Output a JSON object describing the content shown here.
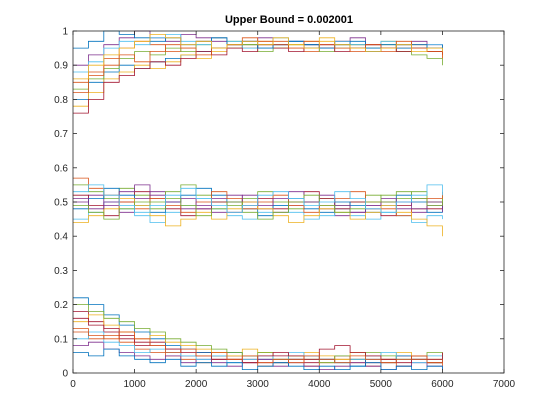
{
  "chart_data": {
    "type": "line",
    "title": "Upper Bound = 0.002001",
    "xlabel": "",
    "ylabel": "",
    "xlim": [
      0,
      7000
    ],
    "ylim": [
      0,
      1
    ],
    "x_ticks": [
      0,
      1000,
      2000,
      3000,
      4000,
      5000,
      6000,
      7000
    ],
    "y_ticks": [
      0,
      0.1,
      0.2,
      0.3,
      0.4,
      0.5,
      0.6,
      0.7,
      0.8,
      0.9,
      1
    ],
    "x_tick_labels": [
      "0",
      "1000",
      "2000",
      "3000",
      "4000",
      "5000",
      "6000",
      "7000"
    ],
    "y_tick_labels": [
      "0",
      "0.1",
      "0.2",
      "0.3",
      "0.4",
      "0.5",
      "0.6",
      "0.7",
      "0.8",
      "0.9",
      "1"
    ],
    "grid": false,
    "legend": "none",
    "x_step": 250,
    "colors": [
      "#0072BD",
      "#D95319",
      "#EDB120",
      "#7E2F8E",
      "#77AC30",
      "#4DBEEE",
      "#A2142F"
    ],
    "series_groups": [
      {
        "band": "upper",
        "series": [
          {
            "values": [
              0.8,
              0.85,
              0.88,
              0.9,
              0.89,
              0.91,
              0.92,
              0.93,
              0.94,
              0.95,
              0.95,
              0.96,
              0.95,
              0.96,
              0.97,
              0.96,
              0.95,
              0.96,
              0.95,
              0.94,
              0.95,
              0.96,
              0.95,
              0.94,
              0.94
            ]
          },
          {
            "values": [
              0.85,
              0.88,
              0.92,
              0.95,
              0.97,
              0.96,
              0.94,
              0.95,
              0.97,
              0.98,
              0.96,
              0.95,
              0.96,
              0.97,
              0.95,
              0.94,
              0.96,
              0.97,
              0.96,
              0.95,
              0.94,
              0.95,
              0.96,
              0.95,
              0.93
            ]
          },
          {
            "values": [
              0.78,
              0.82,
              0.86,
              0.88,
              0.9,
              0.89,
              0.91,
              0.93,
              0.92,
              0.94,
              0.95,
              0.96,
              0.97,
              0.95,
              0.96,
              0.97,
              0.98,
              0.96,
              0.95,
              0.96,
              0.97,
              0.96,
              0.95,
              0.94,
              0.92
            ]
          },
          {
            "values": [
              0.9,
              0.93,
              0.96,
              0.98,
              1.0,
              0.98,
              0.97,
              0.99,
              0.98,
              0.97,
              0.96,
              0.97,
              0.98,
              0.96,
              0.97,
              0.95,
              0.96,
              0.97,
              0.98,
              0.96,
              0.95,
              0.96,
              0.97,
              0.96,
              0.95
            ]
          },
          {
            "values": [
              0.83,
              0.86,
              0.89,
              0.92,
              0.94,
              0.93,
              0.95,
              0.94,
              0.96,
              0.95,
              0.97,
              0.96,
              0.94,
              0.95,
              0.96,
              0.95,
              0.94,
              0.95,
              0.96,
              0.95,
              0.96,
              0.94,
              0.93,
              0.92,
              0.9
            ]
          },
          {
            "values": [
              0.88,
              0.91,
              0.95,
              0.97,
              0.96,
              0.98,
              0.99,
              0.97,
              0.96,
              0.98,
              0.97,
              0.95,
              0.96,
              0.98,
              0.97,
              0.96,
              0.95,
              0.97,
              0.96,
              0.95,
              0.97,
              0.96,
              0.95,
              0.96,
              0.94
            ]
          },
          {
            "values": [
              0.76,
              0.8,
              0.85,
              0.87,
              0.89,
              0.91,
              0.9,
              0.92,
              0.94,
              0.93,
              0.95,
              0.94,
              0.96,
              0.95,
              0.94,
              0.96,
              0.95,
              0.94,
              0.95,
              0.96,
              0.95,
              0.94,
              0.95,
              0.94,
              0.93
            ]
          },
          {
            "values": [
              0.95,
              0.97,
              1.0,
              0.99,
              0.98,
              0.97,
              0.98,
              0.96,
              0.97,
              0.98,
              0.96,
              0.97,
              0.95,
              0.96,
              0.97,
              0.96,
              0.95,
              0.96,
              0.97,
              0.95,
              0.96,
              0.95,
              0.96,
              0.95,
              0.96
            ]
          },
          {
            "values": [
              0.82,
              0.87,
              0.9,
              0.93,
              0.91,
              0.94,
              0.96,
              0.95,
              0.93,
              0.95,
              0.96,
              0.98,
              0.97,
              0.96,
              0.95,
              0.97,
              0.96,
              0.95,
              0.94,
              0.96,
              0.95,
              0.97,
              0.95,
              0.94,
              0.92
            ]
          },
          {
            "values": [
              0.86,
              0.9,
              0.93,
              0.95,
              0.97,
              0.99,
              0.98,
              0.96,
              0.97,
              0.95,
              0.96,
              0.97,
              0.96,
              0.98,
              0.96,
              0.95,
              0.97,
              0.96,
              0.95,
              0.94,
              0.95,
              0.96,
              0.94,
              0.95,
              0.94
            ]
          }
        ]
      },
      {
        "band": "middle",
        "series": [
          {
            "values": [
              0.5,
              0.52,
              0.49,
              0.47,
              0.51,
              0.53,
              0.5,
              0.48,
              0.49,
              0.51,
              0.52,
              0.5,
              0.48,
              0.47,
              0.49,
              0.5,
              0.48,
              0.46,
              0.47,
              0.49,
              0.5,
              0.48,
              0.47,
              0.49,
              0.48
            ]
          },
          {
            "values": [
              0.55,
              0.53,
              0.51,
              0.54,
              0.52,
              0.5,
              0.53,
              0.55,
              0.52,
              0.5,
              0.49,
              0.51,
              0.53,
              0.5,
              0.48,
              0.5,
              0.51,
              0.49,
              0.5,
              0.52,
              0.5,
              0.51,
              0.53,
              0.5,
              0.52
            ]
          },
          {
            "values": [
              0.45,
              0.47,
              0.5,
              0.48,
              0.46,
              0.44,
              0.47,
              0.49,
              0.51,
              0.48,
              0.46,
              0.45,
              0.47,
              0.49,
              0.47,
              0.45,
              0.46,
              0.48,
              0.46,
              0.45,
              0.47,
              0.46,
              0.44,
              0.46,
              0.45
            ]
          },
          {
            "values": [
              0.52,
              0.49,
              0.46,
              0.5,
              0.53,
              0.51,
              0.48,
              0.46,
              0.48,
              0.5,
              0.47,
              0.49,
              0.51,
              0.48,
              0.5,
              0.53,
              0.51,
              0.48,
              0.5,
              0.48,
              0.46,
              0.49,
              0.51,
              0.48,
              0.5
            ]
          },
          {
            "values": [
              0.48,
              0.51,
              0.54,
              0.52,
              0.49,
              0.47,
              0.5,
              0.52,
              0.54,
              0.52,
              0.5,
              0.48,
              0.46,
              0.49,
              0.51,
              0.48,
              0.47,
              0.5,
              0.49,
              0.47,
              0.49,
              0.52,
              0.5,
              0.47,
              0.49
            ]
          },
          {
            "values": [
              0.57,
              0.54,
              0.52,
              0.5,
              0.48,
              0.51,
              0.49,
              0.47,
              0.5,
              0.53,
              0.51,
              0.48,
              0.5,
              0.52,
              0.49,
              0.47,
              0.49,
              0.51,
              0.53,
              0.5,
              0.48,
              0.46,
              0.48,
              0.51,
              0.53
            ]
          },
          {
            "values": [
              0.44,
              0.46,
              0.48,
              0.51,
              0.49,
              0.46,
              0.43,
              0.45,
              0.47,
              0.45,
              0.48,
              0.5,
              0.48,
              0.46,
              0.44,
              0.46,
              0.48,
              0.47,
              0.45,
              0.47,
              0.49,
              0.47,
              0.45,
              0.43,
              0.4
            ]
          },
          {
            "values": [
              0.51,
              0.48,
              0.5,
              0.53,
              0.55,
              0.52,
              0.5,
              0.51,
              0.48,
              0.47,
              0.5,
              0.52,
              0.49,
              0.51,
              0.53,
              0.5,
              0.52,
              0.49,
              0.47,
              0.49,
              0.51,
              0.5,
              0.48,
              0.5,
              0.47
            ]
          },
          {
            "values": [
              0.49,
              0.47,
              0.45,
              0.48,
              0.5,
              0.48,
              0.51,
              0.49,
              0.46,
              0.48,
              0.5,
              0.47,
              0.45,
              0.47,
              0.5,
              0.52,
              0.49,
              0.47,
              0.48,
              0.5,
              0.52,
              0.53,
              0.51,
              0.49,
              0.51
            ]
          },
          {
            "values": [
              0.53,
              0.55,
              0.52,
              0.49,
              0.47,
              0.49,
              0.52,
              0.54,
              0.51,
              0.49,
              0.47,
              0.49,
              0.52,
              0.53,
              0.51,
              0.49,
              0.5,
              0.53,
              0.51,
              0.48,
              0.47,
              0.5,
              0.52,
              0.55,
              0.52
            ]
          }
        ]
      },
      {
        "band": "lower",
        "series": [
          {
            "values": [
              0.18,
              0.15,
              0.12,
              0.1,
              0.08,
              0.09,
              0.07,
              0.05,
              0.06,
              0.04,
              0.05,
              0.04,
              0.03,
              0.05,
              0.04,
              0.03,
              0.04,
              0.05,
              0.04,
              0.03,
              0.04,
              0.05,
              0.04,
              0.03,
              0.05
            ]
          },
          {
            "values": [
              0.22,
              0.2,
              0.17,
              0.14,
              0.12,
              0.1,
              0.08,
              0.07,
              0.06,
              0.05,
              0.06,
              0.05,
              0.04,
              0.03,
              0.04,
              0.05,
              0.04,
              0.03,
              0.02,
              0.04,
              0.03,
              0.05,
              0.04,
              0.03,
              0.04
            ]
          },
          {
            "values": [
              0.12,
              0.1,
              0.11,
              0.09,
              0.07,
              0.06,
              0.05,
              0.04,
              0.03,
              0.05,
              0.04,
              0.03,
              0.02,
              0.03,
              0.04,
              0.02,
              0.03,
              0.04,
              0.03,
              0.02,
              0.03,
              0.02,
              0.04,
              0.03,
              0.02
            ]
          },
          {
            "values": [
              0.15,
              0.17,
              0.14,
              0.12,
              0.1,
              0.11,
              0.09,
              0.08,
              0.07,
              0.06,
              0.05,
              0.07,
              0.06,
              0.04,
              0.05,
              0.06,
              0.05,
              0.04,
              0.06,
              0.05,
              0.04,
              0.06,
              0.05,
              0.04,
              0.06
            ]
          },
          {
            "values": [
              0.08,
              0.09,
              0.07,
              0.06,
              0.05,
              0.04,
              0.05,
              0.03,
              0.04,
              0.03,
              0.02,
              0.03,
              0.04,
              0.02,
              0.03,
              0.02,
              0.01,
              0.02,
              0.03,
              0.02,
              0.01,
              0.02,
              0.03,
              0.02,
              0.01
            ]
          },
          {
            "values": [
              0.2,
              0.18,
              0.16,
              0.15,
              0.13,
              0.12,
              0.1,
              0.09,
              0.08,
              0.07,
              0.06,
              0.05,
              0.06,
              0.04,
              0.05,
              0.04,
              0.03,
              0.05,
              0.04,
              0.06,
              0.05,
              0.04,
              0.05,
              0.06,
              0.05
            ]
          },
          {
            "values": [
              0.1,
              0.12,
              0.09,
              0.08,
              0.06,
              0.07,
              0.06,
              0.05,
              0.04,
              0.05,
              0.03,
              0.04,
              0.05,
              0.04,
              0.06,
              0.05,
              0.04,
              0.03,
              0.04,
              0.05,
              0.06,
              0.04,
              0.03,
              0.05,
              0.04
            ]
          },
          {
            "values": [
              0.16,
              0.14,
              0.13,
              0.11,
              0.09,
              0.08,
              0.07,
              0.06,
              0.05,
              0.04,
              0.04,
              0.03,
              0.05,
              0.06,
              0.05,
              0.04,
              0.07,
              0.08,
              0.06,
              0.05,
              0.04,
              0.03,
              0.05,
              0.04,
              0.06
            ]
          },
          {
            "values": [
              0.06,
              0.05,
              0.07,
              0.05,
              0.04,
              0.03,
              0.04,
              0.02,
              0.03,
              0.02,
              0.03,
              0.01,
              0.02,
              0.03,
              0.02,
              0.01,
              0.02,
              0.01,
              0.02,
              0.03,
              0.01,
              0.02,
              0.01,
              0.02,
              0.01
            ]
          },
          {
            "values": [
              0.13,
              0.11,
              0.1,
              0.12,
              0.1,
              0.08,
              0.06,
              0.07,
              0.05,
              0.06,
              0.04,
              0.05,
              0.03,
              0.04,
              0.03,
              0.05,
              0.04,
              0.03,
              0.05,
              0.04,
              0.03,
              0.04,
              0.05,
              0.03,
              0.04
            ]
          }
        ]
      }
    ]
  }
}
